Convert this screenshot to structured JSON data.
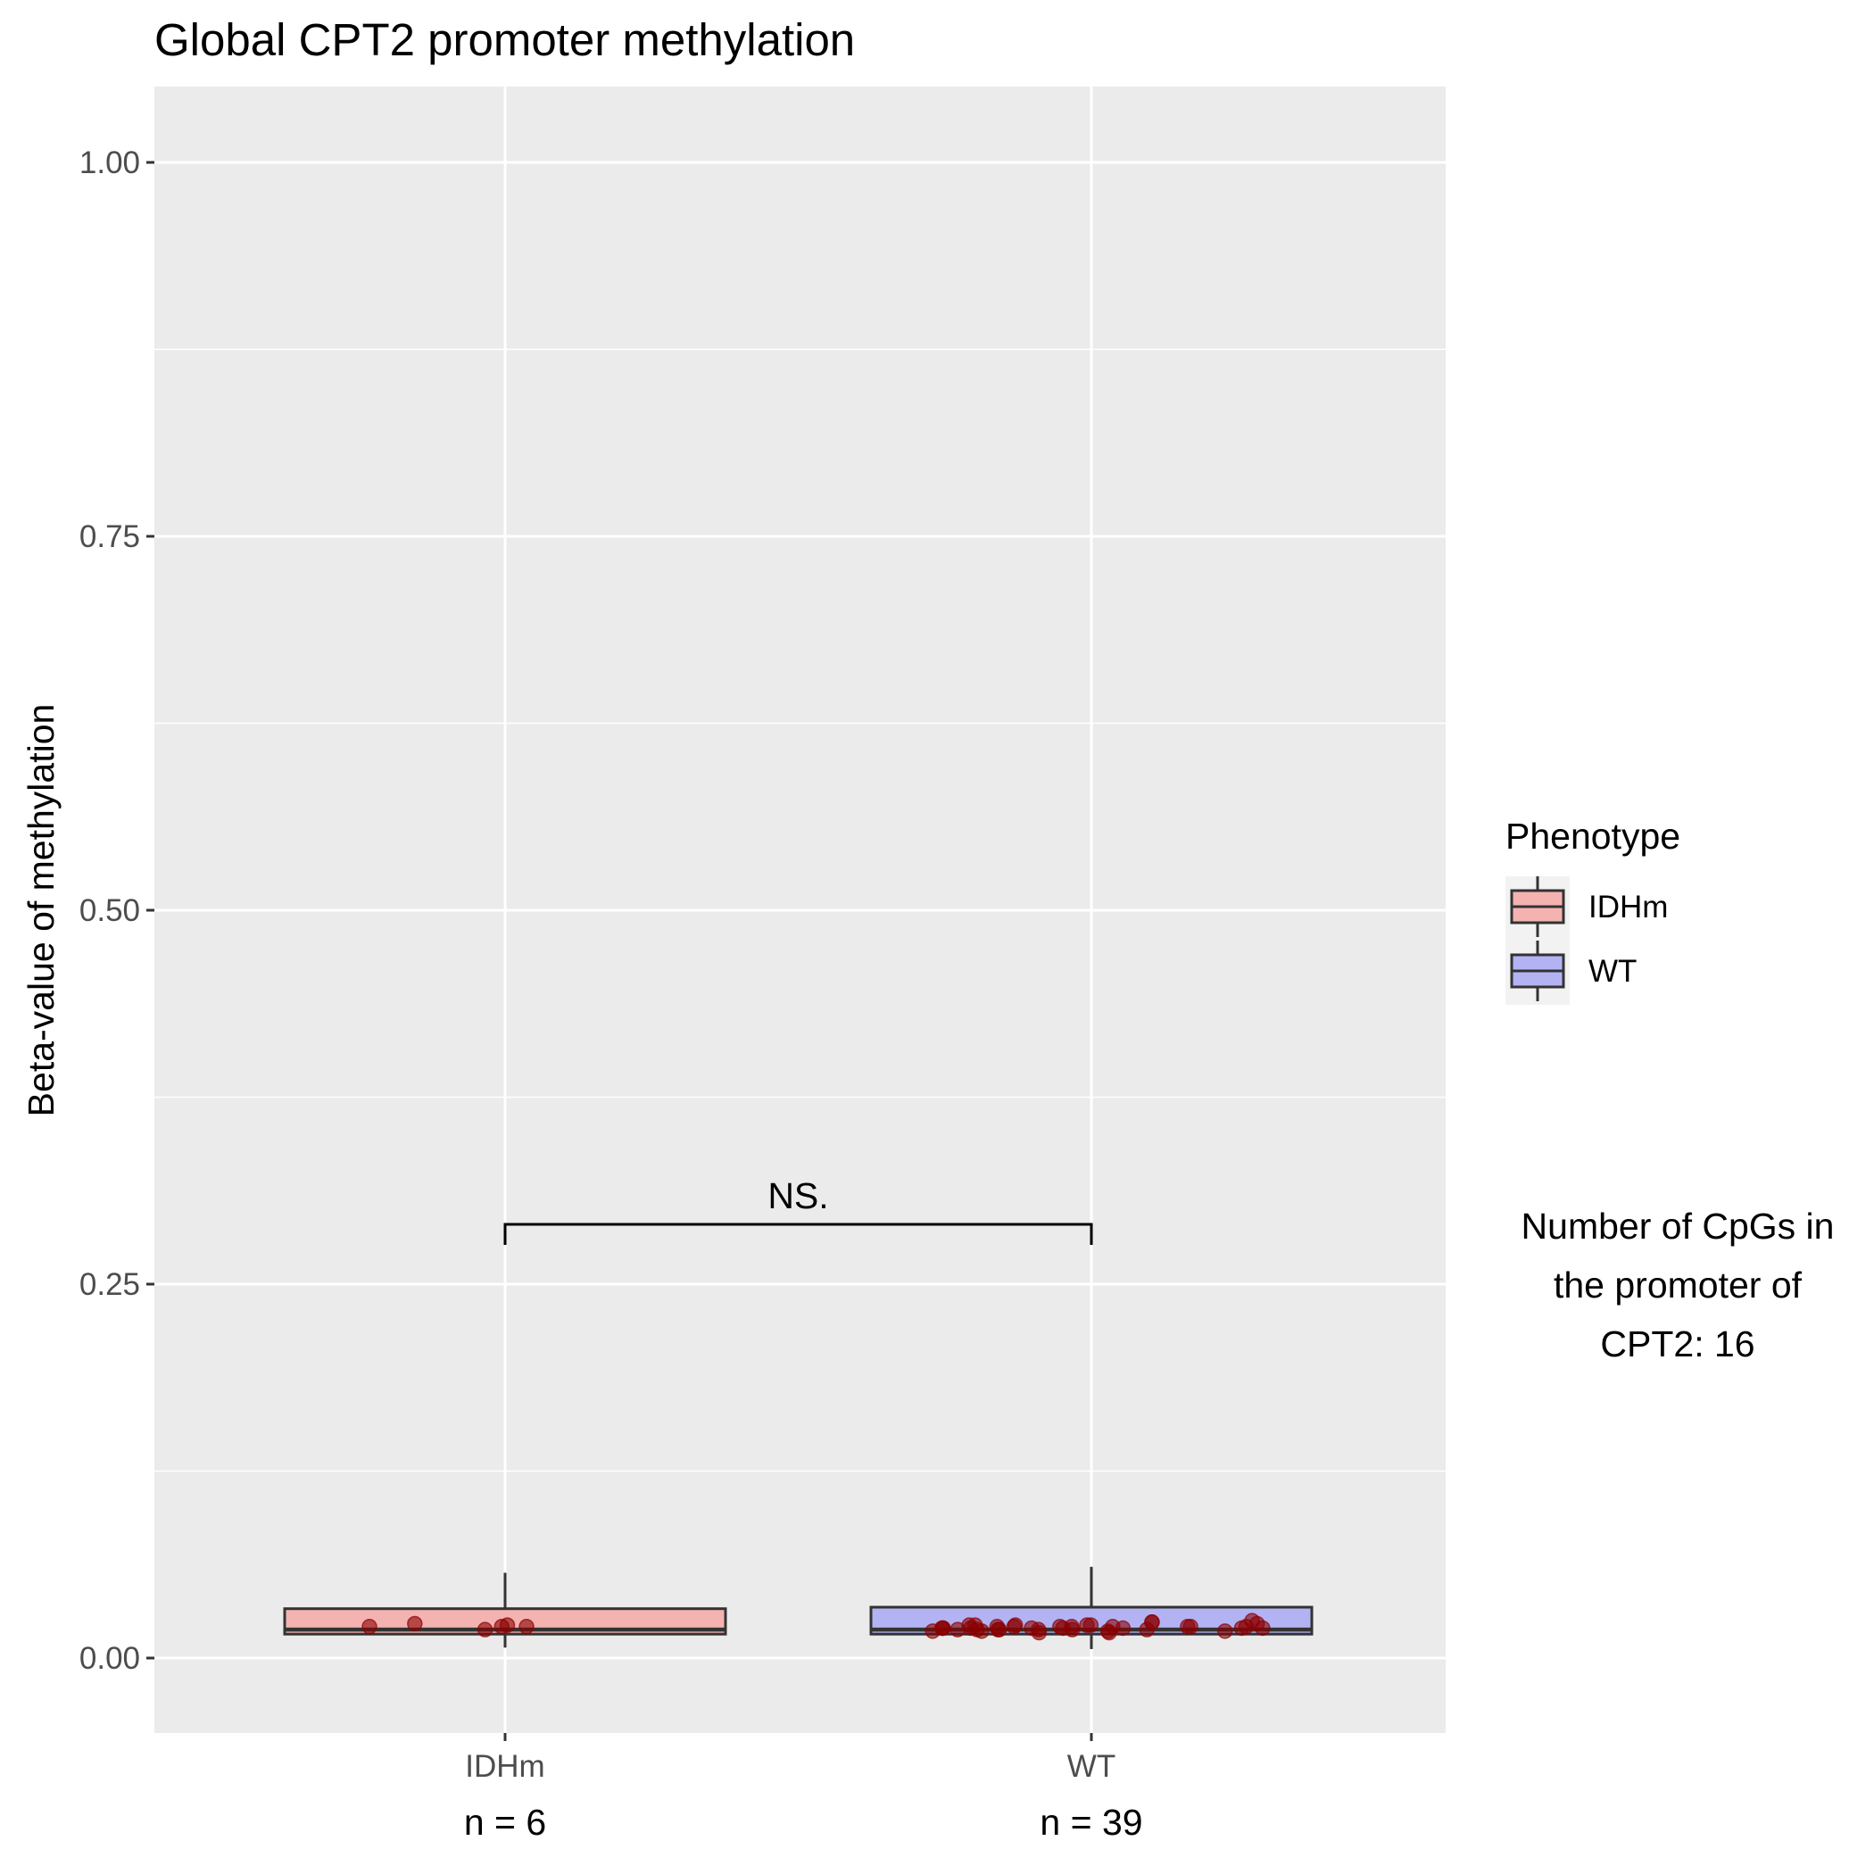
{
  "chart_data": {
    "type": "boxplot",
    "title": "Global CPT2 promoter methylation",
    "ylabel": "Beta-value of methylation",
    "xlabel": "",
    "ylim": [
      -0.05,
      1.05
    ],
    "y_ticks": [
      0.0,
      0.25,
      0.5,
      0.75,
      1.0
    ],
    "y_tick_labels": [
      "0.00",
      "0.25",
      "0.50",
      "0.75",
      "1.00"
    ],
    "grid": true,
    "categories": [
      "IDHm",
      "WT"
    ],
    "n_labels": [
      "n = 6",
      "n = 39"
    ],
    "boxes": [
      {
        "name": "IDHm",
        "color": "#f4b3b0",
        "min": 0.007,
        "q1": 0.016,
        "median": 0.019,
        "q3": 0.033,
        "max": 0.057
      },
      {
        "name": "WT",
        "color": "#b3b3f4",
        "min": 0.006,
        "q1": 0.016,
        "median": 0.019,
        "q3": 0.034,
        "max": 0.061
      }
    ],
    "points": [
      {
        "category": "IDHm",
        "values": [
          0.021,
          0.021,
          0.021,
          0.023,
          0.019,
          0.022
        ]
      },
      {
        "category": "WT",
        "values": [
          0.02,
          0.018,
          0.02,
          0.021,
          0.022,
          0.021,
          0.019,
          0.02,
          0.022,
          0.019,
          0.024,
          0.02,
          0.021,
          0.022,
          0.019,
          0.018,
          0.021,
          0.023,
          0.019,
          0.021,
          0.025,
          0.018,
          0.02,
          0.017,
          0.024,
          0.021,
          0.022,
          0.02,
          0.019,
          0.021,
          0.018,
          0.02,
          0.022,
          0.021,
          0.017,
          0.019,
          0.02,
          0.02,
          0.019
        ]
      }
    ],
    "point_color": "#8b0000",
    "significance": {
      "label": "NS.",
      "y": 0.29,
      "from": "IDHm",
      "to": "WT"
    },
    "legend": {
      "title": "Phenotype",
      "position": "right",
      "entries": [
        {
          "label": "IDHm",
          "color": "#f4b3b0"
        },
        {
          "label": "WT",
          "color": "#b3b3f4"
        }
      ]
    },
    "annotation_lines": [
      "Number of CpGs in",
      "the promoter of",
      "CPT2: 16"
    ]
  }
}
